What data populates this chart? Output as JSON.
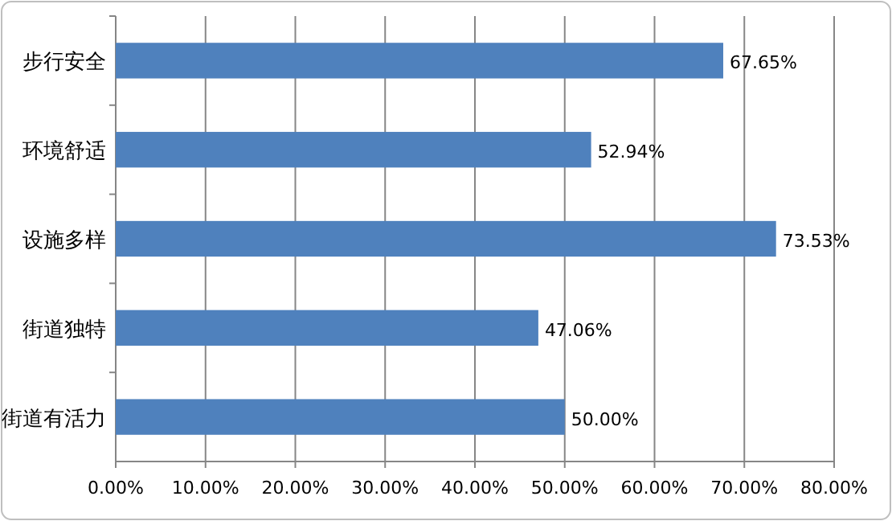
{
  "chart_data": {
    "type": "bar",
    "orientation": "horizontal",
    "categories": [
      "步行安全",
      "环境舒适",
      "设施多样",
      "街道独特",
      "街道有活力"
    ],
    "values": [
      67.65,
      52.94,
      73.53,
      47.06,
      50.0
    ],
    "value_labels": [
      "67.65%",
      "52.94%",
      "73.53%",
      "47.06%",
      "50.00%"
    ],
    "color": "#4f81bd",
    "xlim": [
      0,
      80
    ],
    "xticks": [
      {
        "value": 0,
        "label": "0.00%"
      },
      {
        "value": 10,
        "label": "10.00%"
      },
      {
        "value": 20,
        "label": "20.00%"
      },
      {
        "value": 30,
        "label": "30.00%"
      },
      {
        "value": 40,
        "label": "40.00%"
      },
      {
        "value": 50,
        "label": "50.00%"
      },
      {
        "value": 60,
        "label": "60.00%"
      },
      {
        "value": 70,
        "label": "70.00%"
      },
      {
        "value": 80,
        "label": "80.00%"
      }
    ],
    "grid": "x"
  }
}
